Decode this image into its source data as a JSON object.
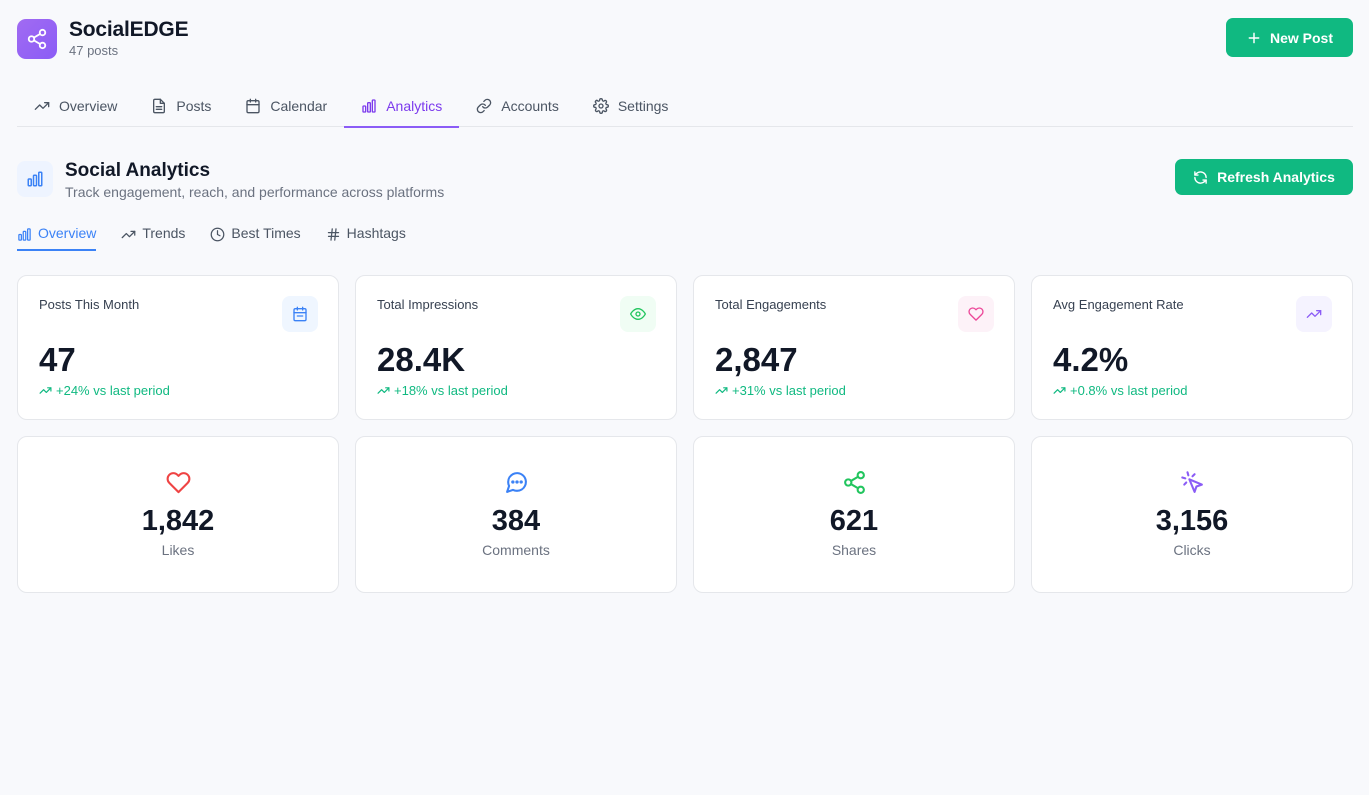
{
  "header": {
    "app_title": "SocialEDGE",
    "post_count": "47 posts",
    "new_post_label": "New Post",
    "logo_icon": "share-icon"
  },
  "nav": {
    "tabs": [
      {
        "label": "Overview",
        "icon": "trending-up-icon",
        "active": false
      },
      {
        "label": "Posts",
        "icon": "file-text-icon",
        "active": false
      },
      {
        "label": "Calendar",
        "icon": "calendar-icon",
        "active": false
      },
      {
        "label": "Analytics",
        "icon": "bar-chart-icon",
        "active": true
      },
      {
        "label": "Accounts",
        "icon": "link-icon",
        "active": false
      },
      {
        "label": "Settings",
        "icon": "gear-icon",
        "active": false
      }
    ]
  },
  "section": {
    "title": "Social Analytics",
    "subtitle": "Track engagement, reach, and performance across platforms",
    "refresh_label": "Refresh Analytics"
  },
  "sub_tabs": [
    {
      "label": "Overview",
      "icon": "bar-chart-icon",
      "active": true
    },
    {
      "label": "Trends",
      "icon": "trending-up-icon",
      "active": false
    },
    {
      "label": "Best Times",
      "icon": "clock-icon",
      "active": false
    },
    {
      "label": "Hashtags",
      "icon": "hash-icon",
      "active": false
    }
  ],
  "stats": [
    {
      "label": "Posts This Month",
      "value": "47",
      "change": "+24% vs last period",
      "icon": "calendar-icon",
      "accent": "#3b82f6",
      "icon_bg": "#eff6ff"
    },
    {
      "label": "Total Impressions",
      "value": "28.4K",
      "change": "+18% vs last period",
      "icon": "eye-icon",
      "accent": "#22c55e",
      "icon_bg": "#f0fdf4"
    },
    {
      "label": "Total Engagements",
      "value": "2,847",
      "change": "+31% vs last period",
      "icon": "heart-icon",
      "accent": "#ec4899",
      "icon_bg": "#fdf2f8"
    },
    {
      "label": "Avg Engagement Rate",
      "value": "4.2%",
      "change": "+0.8% vs last period",
      "icon": "trending-up-icon",
      "accent": "#8b5cf6",
      "icon_bg": "#f5f3ff"
    }
  ],
  "metrics": [
    {
      "label": "Likes",
      "value": "1,842",
      "icon": "heart-icon",
      "accent": "#ef4444"
    },
    {
      "label": "Comments",
      "value": "384",
      "icon": "message-circle-icon",
      "accent": "#3b82f6"
    },
    {
      "label": "Shares",
      "value": "621",
      "icon": "share-icon",
      "accent": "#22c55e"
    },
    {
      "label": "Clicks",
      "value": "3,156",
      "icon": "mouse-pointer-click-icon",
      "accent": "#8b5cf6"
    }
  ],
  "colors": {
    "primary": "#10b981",
    "brand": "#8b5cf6",
    "active_subtab": "#3b82f6",
    "positive": "#10b981"
  }
}
